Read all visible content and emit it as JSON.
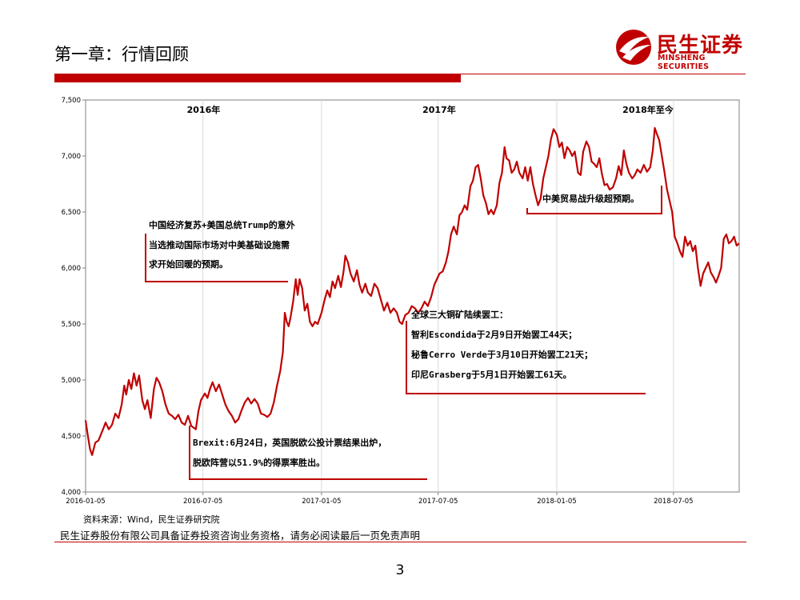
{
  "page": {
    "title": "第一章：行情回顾",
    "logo_cn": "民生证券",
    "logo_en": "MINSHENG SECURITIES",
    "source": "资料来源：Wind，民生证券研究院",
    "disclaimer": "民生证券股份有限公司具备证券投资咨询业务资格，请务必阅读最后一页免责声明",
    "page_number": "3"
  },
  "colors": {
    "brand_red": "#c00000",
    "line": "#c00000",
    "grid": "#d9d9d9"
  },
  "chart_data": {
    "type": "line",
    "title": "",
    "xlabel": "",
    "ylabel": "",
    "ylim": [
      4000,
      7500
    ],
    "x_range": [
      "2016-01-05",
      "2018-10-15"
    ],
    "yticks": [
      "4,000",
      "4,500",
      "5,000",
      "5,500",
      "6,000",
      "6,500",
      "7,000",
      "7,500"
    ],
    "ytick_values": [
      4000,
      4500,
      5000,
      5500,
      6000,
      6500,
      7000,
      7500
    ],
    "xticks": [
      {
        "label": "2016-01-05",
        "date": "2016-01-05"
      },
      {
        "label": "2016-07-05",
        "date": "2016-07-05"
      },
      {
        "label": "2017-01-05",
        "date": "2017-01-05"
      },
      {
        "label": "2017-07-05",
        "date": "2017-07-05"
      },
      {
        "label": "2018-01-05",
        "date": "2018-01-05"
      },
      {
        "label": "2018-07-05",
        "date": "2018-07-05"
      }
    ],
    "grid": true,
    "period_labels": [
      {
        "text": "2016年",
        "start": "2016-01-05",
        "end": "2017-01-05"
      },
      {
        "text": "2017年",
        "start": "2017-01-05",
        "end": "2018-01-05"
      },
      {
        "text": "2018年至今",
        "start": "2018-01-05",
        "end": "2018-10-15"
      }
    ],
    "annotations": [
      {
        "lines": [
          "中国经济复苏+美国总统Trump的意外",
          "当选推动国际市场对中美基础设施需",
          "求开始回暖的预期。"
        ]
      },
      {
        "lines": [
          "中美贸易战升级超预期。"
        ]
      },
      {
        "lines": [
          "全球三大铜矿陆续罢工：",
          "智利Escondida于2月9日开始罢工44天；",
          "秘鲁Cerro Verde于3月10日开始罢工21天；",
          "印尼Grasberg于5月1日开始罢工61天。"
        ]
      },
      {
        "lines": [
          "Brexit:6月24日，英国脱欧公投计票结果出炉，",
          "脱欧阵营以51.9%的得票率胜出。"
        ]
      }
    ],
    "series": [
      {
        "points": [
          [
            "2016-01-05",
            4640
          ],
          [
            "2016-01-08",
            4520
          ],
          [
            "2016-01-12",
            4380
          ],
          [
            "2016-01-15",
            4330
          ],
          [
            "2016-01-20",
            4440
          ],
          [
            "2016-01-25",
            4460
          ],
          [
            "2016-02-01",
            4560
          ],
          [
            "2016-02-05",
            4620
          ],
          [
            "2016-02-10",
            4560
          ],
          [
            "2016-02-15",
            4600
          ],
          [
            "2016-02-20",
            4700
          ],
          [
            "2016-02-25",
            4660
          ],
          [
            "2016-03-01",
            4780
          ],
          [
            "2016-03-05",
            4950
          ],
          [
            "2016-03-08",
            4870
          ],
          [
            "2016-03-12",
            5000
          ],
          [
            "2016-03-16",
            4920
          ],
          [
            "2016-03-20",
            5060
          ],
          [
            "2016-03-24",
            4950
          ],
          [
            "2016-03-28",
            5040
          ],
          [
            "2016-04-02",
            4820
          ],
          [
            "2016-04-06",
            4740
          ],
          [
            "2016-04-10",
            4820
          ],
          [
            "2016-04-15",
            4660
          ],
          [
            "2016-04-20",
            4920
          ],
          [
            "2016-04-24",
            5020
          ],
          [
            "2016-04-28",
            4980
          ],
          [
            "2016-05-03",
            4900
          ],
          [
            "2016-05-08",
            4780
          ],
          [
            "2016-05-13",
            4700
          ],
          [
            "2016-05-18",
            4680
          ],
          [
            "2016-05-23",
            4650
          ],
          [
            "2016-05-28",
            4690
          ],
          [
            "2016-06-02",
            4620
          ],
          [
            "2016-06-07",
            4600
          ],
          [
            "2016-06-12",
            4680
          ],
          [
            "2016-06-17",
            4590
          ],
          [
            "2016-06-24",
            4560
          ],
          [
            "2016-06-28",
            4720
          ],
          [
            "2016-07-02",
            4820
          ],
          [
            "2016-07-08",
            4880
          ],
          [
            "2016-07-12",
            4840
          ],
          [
            "2016-07-16",
            4920
          ],
          [
            "2016-07-20",
            4980
          ],
          [
            "2016-07-25",
            4900
          ],
          [
            "2016-07-30",
            4960
          ],
          [
            "2016-08-04",
            4870
          ],
          [
            "2016-08-09",
            4780
          ],
          [
            "2016-08-14",
            4720
          ],
          [
            "2016-08-19",
            4680
          ],
          [
            "2016-08-24",
            4620
          ],
          [
            "2016-08-29",
            4650
          ],
          [
            "2016-09-03",
            4730
          ],
          [
            "2016-09-08",
            4800
          ],
          [
            "2016-09-13",
            4840
          ],
          [
            "2016-09-18",
            4790
          ],
          [
            "2016-09-23",
            4830
          ],
          [
            "2016-09-28",
            4790
          ],
          [
            "2016-10-03",
            4700
          ],
          [
            "2016-10-08",
            4690
          ],
          [
            "2016-10-13",
            4670
          ],
          [
            "2016-10-18",
            4700
          ],
          [
            "2016-10-23",
            4800
          ],
          [
            "2016-10-28",
            4950
          ],
          [
            "2016-11-02",
            5080
          ],
          [
            "2016-11-06",
            5250
          ],
          [
            "2016-11-09",
            5600
          ],
          [
            "2016-11-12",
            5520
          ],
          [
            "2016-11-15",
            5480
          ],
          [
            "2016-11-18",
            5560
          ],
          [
            "2016-11-22",
            5700
          ],
          [
            "2016-11-26",
            5900
          ],
          [
            "2016-11-29",
            5760
          ],
          [
            "2016-12-02",
            5900
          ],
          [
            "2016-12-06",
            5820
          ],
          [
            "2016-12-10",
            5620
          ],
          [
            "2016-12-14",
            5680
          ],
          [
            "2016-12-18",
            5520
          ],
          [
            "2016-12-22",
            5480
          ],
          [
            "2016-12-26",
            5520
          ],
          [
            "2016-12-30",
            5500
          ],
          [
            "2017-01-05",
            5600
          ],
          [
            "2017-01-10",
            5720
          ],
          [
            "2017-01-14",
            5800
          ],
          [
            "2017-01-18",
            5740
          ],
          [
            "2017-01-22",
            5880
          ],
          [
            "2017-01-26",
            5820
          ],
          [
            "2017-01-31",
            5930
          ],
          [
            "2017-02-04",
            5830
          ],
          [
            "2017-02-08",
            5960
          ],
          [
            "2017-02-11",
            6110
          ],
          [
            "2017-02-15",
            6050
          ],
          [
            "2017-02-19",
            5950
          ],
          [
            "2017-02-24",
            5880
          ],
          [
            "2017-03-01",
            5980
          ],
          [
            "2017-03-05",
            5850
          ],
          [
            "2017-03-09",
            5780
          ],
          [
            "2017-03-14",
            5860
          ],
          [
            "2017-03-18",
            5780
          ],
          [
            "2017-03-23",
            5750
          ],
          [
            "2017-03-28",
            5860
          ],
          [
            "2017-04-02",
            5820
          ],
          [
            "2017-04-07",
            5720
          ],
          [
            "2017-04-12",
            5620
          ],
          [
            "2017-04-17",
            5690
          ],
          [
            "2017-04-22",
            5600
          ],
          [
            "2017-04-27",
            5640
          ],
          [
            "2017-05-02",
            5600
          ],
          [
            "2017-05-06",
            5520
          ],
          [
            "2017-05-10",
            5500
          ],
          [
            "2017-05-15",
            5580
          ],
          [
            "2017-05-20",
            5600
          ],
          [
            "2017-05-25",
            5660
          ],
          [
            "2017-05-30",
            5640
          ],
          [
            "2017-06-04",
            5600
          ],
          [
            "2017-06-09",
            5640
          ],
          [
            "2017-06-14",
            5700
          ],
          [
            "2017-06-19",
            5660
          ],
          [
            "2017-06-24",
            5740
          ],
          [
            "2017-06-29",
            5850
          ],
          [
            "2017-07-03",
            5900
          ],
          [
            "2017-07-07",
            5950
          ],
          [
            "2017-07-12",
            5970
          ],
          [
            "2017-07-17",
            6050
          ],
          [
            "2017-07-21",
            6150
          ],
          [
            "2017-07-25",
            6300
          ],
          [
            "2017-07-29",
            6370
          ],
          [
            "2017-08-03",
            6300
          ],
          [
            "2017-08-07",
            6470
          ],
          [
            "2017-08-11",
            6500
          ],
          [
            "2017-08-15",
            6560
          ],
          [
            "2017-08-19",
            6520
          ],
          [
            "2017-08-24",
            6730
          ],
          [
            "2017-08-28",
            6780
          ],
          [
            "2017-09-01",
            6900
          ],
          [
            "2017-09-05",
            6920
          ],
          [
            "2017-09-09",
            6800
          ],
          [
            "2017-09-13",
            6650
          ],
          [
            "2017-09-17",
            6580
          ],
          [
            "2017-09-21",
            6480
          ],
          [
            "2017-09-25",
            6520
          ],
          [
            "2017-09-29",
            6480
          ],
          [
            "2017-10-04",
            6560
          ],
          [
            "2017-10-08",
            6760
          ],
          [
            "2017-10-12",
            6850
          ],
          [
            "2017-10-16",
            7080
          ],
          [
            "2017-10-19",
            6980
          ],
          [
            "2017-10-23",
            6960
          ],
          [
            "2017-10-27",
            6850
          ],
          [
            "2017-10-31",
            6880
          ],
          [
            "2017-11-04",
            6950
          ],
          [
            "2017-11-08",
            6850
          ],
          [
            "2017-11-13",
            6800
          ],
          [
            "2017-11-17",
            6900
          ],
          [
            "2017-11-21",
            6780
          ],
          [
            "2017-11-25",
            6900
          ],
          [
            "2017-11-29",
            6750
          ],
          [
            "2017-12-03",
            6650
          ],
          [
            "2017-12-07",
            6560
          ],
          [
            "2017-12-11",
            6620
          ],
          [
            "2017-12-15",
            6800
          ],
          [
            "2017-12-19",
            6900
          ],
          [
            "2017-12-23",
            7000
          ],
          [
            "2017-12-27",
            7150
          ],
          [
            "2017-12-31",
            7240
          ],
          [
            "2018-01-05",
            7190
          ],
          [
            "2018-01-09",
            7080
          ],
          [
            "2018-01-13",
            7120
          ],
          [
            "2018-01-17",
            6980
          ],
          [
            "2018-01-21",
            7080
          ],
          [
            "2018-01-25",
            7050
          ],
          [
            "2018-01-29",
            7000
          ],
          [
            "2018-02-02",
            7040
          ],
          [
            "2018-02-07",
            6850
          ],
          [
            "2018-02-11",
            6830
          ],
          [
            "2018-02-15",
            7040
          ],
          [
            "2018-02-20",
            7130
          ],
          [
            "2018-02-24",
            7080
          ],
          [
            "2018-02-28",
            6950
          ],
          [
            "2018-03-04",
            6930
          ],
          [
            "2018-03-08",
            6900
          ],
          [
            "2018-03-12",
            6980
          ],
          [
            "2018-03-16",
            6840
          ],
          [
            "2018-03-20",
            6740
          ],
          [
            "2018-03-24",
            6750
          ],
          [
            "2018-03-28",
            6700
          ],
          [
            "2018-04-02",
            6720
          ],
          [
            "2018-04-07",
            6800
          ],
          [
            "2018-04-11",
            6910
          ],
          [
            "2018-04-15",
            6830
          ],
          [
            "2018-04-19",
            7050
          ],
          [
            "2018-04-23",
            6930
          ],
          [
            "2018-04-27",
            6850
          ],
          [
            "2018-05-02",
            6800
          ],
          [
            "2018-05-06",
            6830
          ],
          [
            "2018-05-10",
            6880
          ],
          [
            "2018-05-15",
            6850
          ],
          [
            "2018-05-20",
            6920
          ],
          [
            "2018-05-25",
            6860
          ],
          [
            "2018-05-30",
            6900
          ],
          [
            "2018-06-03",
            7050
          ],
          [
            "2018-06-06",
            7250
          ],
          [
            "2018-06-09",
            7200
          ],
          [
            "2018-06-13",
            7140
          ],
          [
            "2018-06-17",
            7000
          ],
          [
            "2018-06-21",
            6860
          ],
          [
            "2018-06-25",
            6700
          ],
          [
            "2018-06-29",
            6600
          ],
          [
            "2018-07-03",
            6500
          ],
          [
            "2018-07-07",
            6280
          ],
          [
            "2018-07-11",
            6220
          ],
          [
            "2018-07-15",
            6150
          ],
          [
            "2018-07-19",
            6100
          ],
          [
            "2018-07-23",
            6280
          ],
          [
            "2018-07-27",
            6200
          ],
          [
            "2018-07-31",
            6240
          ],
          [
            "2018-08-04",
            6150
          ],
          [
            "2018-08-08",
            6200
          ],
          [
            "2018-08-12",
            6000
          ],
          [
            "2018-08-16",
            5840
          ],
          [
            "2018-08-20",
            5950
          ],
          [
            "2018-08-24",
            6000
          ],
          [
            "2018-08-28",
            6050
          ],
          [
            "2018-09-01",
            5960
          ],
          [
            "2018-09-05",
            5920
          ],
          [
            "2018-09-09",
            5870
          ],
          [
            "2018-09-13",
            5930
          ],
          [
            "2018-09-17",
            6000
          ],
          [
            "2018-09-21",
            6260
          ],
          [
            "2018-09-25",
            6300
          ],
          [
            "2018-09-29",
            6220
          ],
          [
            "2018-10-03",
            6240
          ],
          [
            "2018-10-07",
            6280
          ],
          [
            "2018-10-11",
            6200
          ],
          [
            "2018-10-15",
            6220
          ]
        ]
      }
    ]
  }
}
